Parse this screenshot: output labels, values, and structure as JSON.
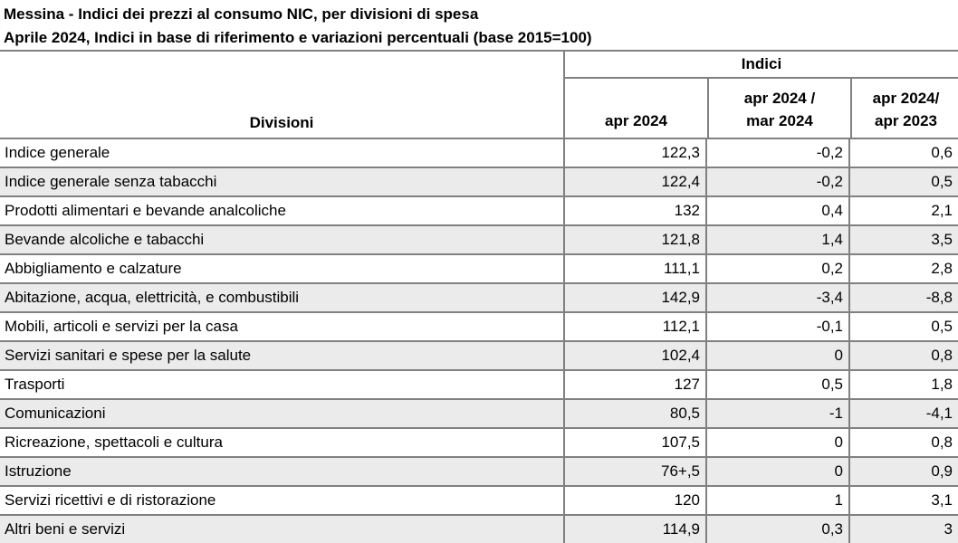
{
  "title": "Messina - Indici dei prezzi al consumo NIC, per divisioni di spesa",
  "subtitle": "Aprile 2024, Indici in base di riferimento e variazioni percentuali (base 2015=100)",
  "colors": {
    "border": "#808080",
    "stripe_row": "#ebebeb",
    "text": "#000000",
    "background": "#ffffff"
  },
  "table": {
    "header": {
      "divisioni": "Divisioni",
      "indici_group": "Indici",
      "col_apr2024": "apr 2024",
      "col_mom_line1": "apr 2024 /",
      "col_mom_line2": "mar 2024",
      "col_yoy_line1": "apr 2024/",
      "col_yoy_line2": "apr 2023"
    },
    "rows": [
      {
        "label": "Indice generale",
        "apr2024": "122,3",
        "mom": "-0,2",
        "yoy": "0,6"
      },
      {
        "label": "Indice generale senza tabacchi",
        "apr2024": "122,4",
        "mom": "-0,2",
        "yoy": "0,5"
      },
      {
        "label": "Prodotti alimentari e bevande analcoliche",
        "apr2024": "132",
        "mom": "0,4",
        "yoy": "2,1"
      },
      {
        "label": "Bevande alcoliche e tabacchi",
        "apr2024": "121,8",
        "mom": "1,4",
        "yoy": "3,5"
      },
      {
        "label": "Abbigliamento e calzature",
        "apr2024": "111,1",
        "mom": "0,2",
        "yoy": "2,8"
      },
      {
        "label": "Abitazione, acqua, elettricità, e combustibili",
        "apr2024": "142,9",
        "mom": "-3,4",
        "yoy": "-8,8"
      },
      {
        "label": "Mobili, articoli e servizi per la casa",
        "apr2024": "112,1",
        "mom": "-0,1",
        "yoy": "0,5"
      },
      {
        "label": "Servizi sanitari e spese per la salute",
        "apr2024": "102,4",
        "mom": "0",
        "yoy": "0,8"
      },
      {
        "label": "Trasporti",
        "apr2024": "127",
        "mom": "0,5",
        "yoy": "1,8"
      },
      {
        "label": "Comunicazioni",
        "apr2024": "80,5",
        "mom": "-1",
        "yoy": "-4,1"
      },
      {
        "label": "Ricreazione, spettacoli e cultura",
        "apr2024": "107,5",
        "mom": "0",
        "yoy": "0,8"
      },
      {
        "label": "Istruzione",
        "apr2024": "76+,5",
        "mom": "0",
        "yoy": "0,9"
      },
      {
        "label": "Servizi ricettivi e di ristorazione",
        "apr2024": "120",
        "mom": "1",
        "yoy": "3,1"
      },
      {
        "label": "Altri beni e servizi",
        "apr2024": "114,9",
        "mom": "0,3",
        "yoy": "3"
      }
    ]
  }
}
